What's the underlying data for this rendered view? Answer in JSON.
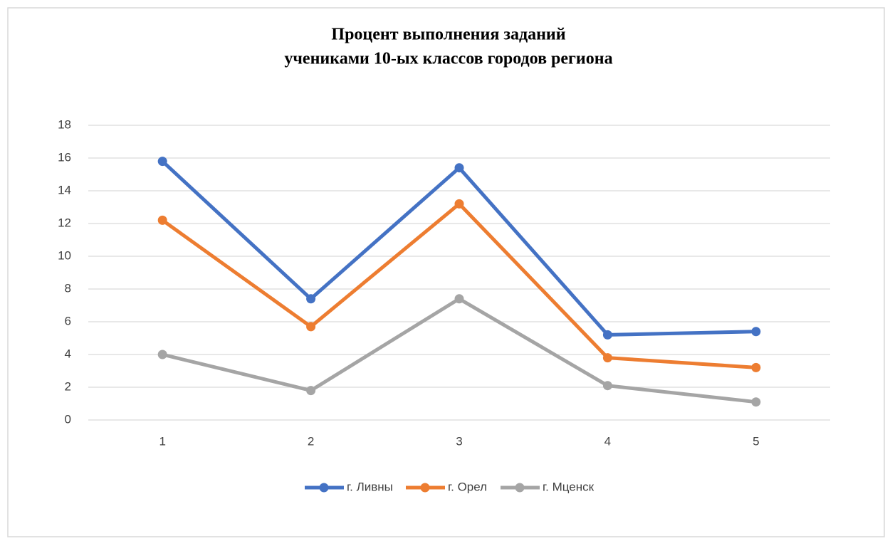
{
  "chart_data": {
    "type": "line",
    "title": [
      "Процент выполнения заданий",
      "учениками 10-ых классов городов региона"
    ],
    "categories": [
      1,
      2,
      3,
      4,
      5
    ],
    "series": [
      {
        "name": "г. Ливны",
        "color": "#4472c4",
        "values": [
          15.8,
          7.4,
          15.4,
          5.2,
          5.4
        ]
      },
      {
        "name": "г. Орел",
        "color": "#ed7d31",
        "values": [
          12.2,
          5.7,
          13.2,
          3.8,
          3.2
        ]
      },
      {
        "name": "г. Мценск",
        "color": "#a5a5a5",
        "values": [
          4.0,
          1.8,
          7.4,
          2.1,
          1.1
        ]
      }
    ],
    "ylim": [
      0,
      18
    ],
    "yticks": [
      0,
      2,
      4,
      6,
      8,
      10,
      12,
      14,
      16,
      18
    ],
    "grid": true,
    "legend": "bottom"
  }
}
